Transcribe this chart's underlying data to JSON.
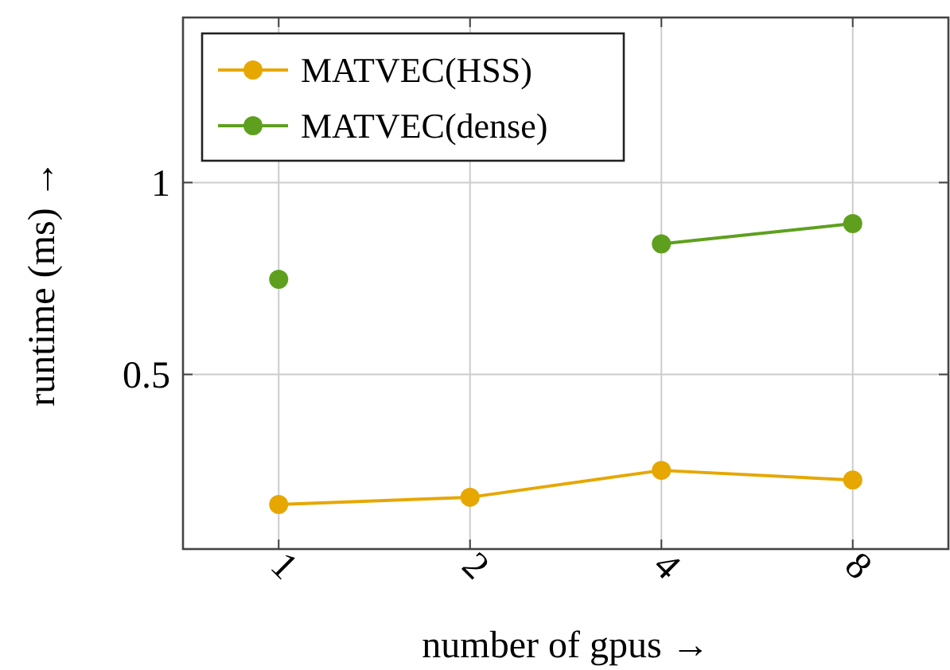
{
  "chart_data": {
    "type": "line",
    "xlabel": "number of gpus →",
    "ylabel": "runtime (ms) →",
    "categories": [
      "1",
      "2",
      "4",
      "8"
    ],
    "ylim": [
      0.045,
      1.43
    ],
    "yticks": [
      0.5,
      1
    ],
    "grid": true,
    "legend": "top left",
    "marker": "circle",
    "series": [
      {
        "name": "MATVEC(HSS)",
        "color": "#e6a700",
        "values": [
          0.161,
          0.18,
          0.25,
          0.225
        ]
      },
      {
        "name": "MATVEC(dense)",
        "color": "#5ea01e",
        "values": [
          0.748,
          null,
          0.84,
          0.893
        ]
      }
    ]
  }
}
